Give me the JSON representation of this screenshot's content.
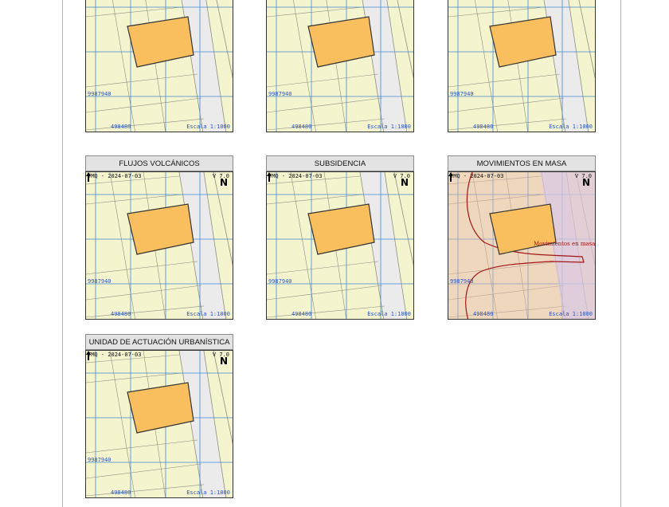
{
  "map_header": "TMQ - 2024-07-03",
  "version": "V 7.0",
  "north_label": "N",
  "coord_y": "9987940",
  "coord_x": "498480",
  "scale": "Escala 1:1000",
  "colors": {
    "map_background": "#f4f4ce",
    "road": "#ebebeb",
    "grid": "#3f8bd6",
    "parcel_fill": "#f9bf5f",
    "parcel_stroke": "#333333",
    "coordinate_text": "#2a55c9",
    "landslide_zone": "#a31616",
    "title_background": "#e3e3e3"
  },
  "panels": [
    {
      "title": "",
      "overlay": null
    },
    {
      "title": "",
      "overlay": null
    },
    {
      "title": "",
      "overlay": null
    },
    {
      "title": "FLUJOS VOLCÁNICOS",
      "overlay": null
    },
    {
      "title": "SUBSIDENCIA",
      "overlay": null
    },
    {
      "title": "MOVIMIENTOS EN MASA",
      "overlay": {
        "label": "Movimientos en masa"
      }
    },
    {
      "title": "UNIDAD DE ACTUACIÓN URBANÍSTICA",
      "overlay": null
    }
  ]
}
